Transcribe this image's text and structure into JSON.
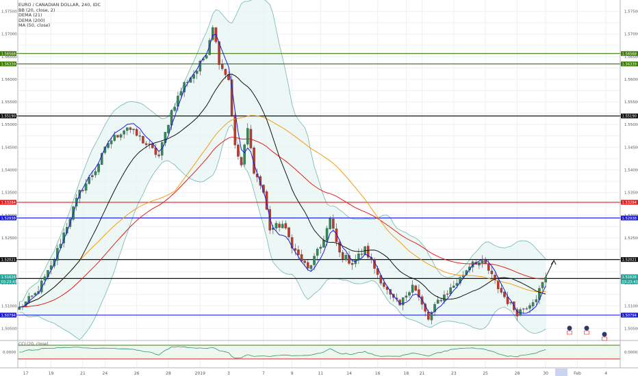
{
  "chart_data": {
    "type": "candlestick",
    "symbol": "EURO / CANADIAN DOLLAR, 240, IDC",
    "indicator_labels": [
      "BB (20, close, 2)",
      "DEMA (21)",
      "DEMA (200)",
      "MA (50, close)"
    ],
    "sub_indicator_label": "CCI (20, close)",
    "ylim": [
      1.5025,
      1.5775
    ],
    "y_ticks": [
      "1.57500",
      "1.57000",
      "1.56500",
      "1.56000",
      "1.55500",
      "1.55000",
      "1.54500",
      "1.54000",
      "1.53500",
      "1.53000",
      "1.52500",
      "1.52000",
      "1.51500",
      "1.51000",
      "1.50500"
    ],
    "cci_tick": "0.0000",
    "x_tick_labels": [
      {
        "label": "17",
        "i": 2
      },
      {
        "label": "19",
        "i": 10
      },
      {
        "label": "21",
        "i": 20
      },
      {
        "label": "24",
        "i": 27
      },
      {
        "label": "26",
        "i": 37
      },
      {
        "label": "28",
        "i": 47
      },
      {
        "label": "2019",
        "i": 57
      },
      {
        "label": "3",
        "i": 66
      },
      {
        "label": "7",
        "i": 77
      },
      {
        "label": "9",
        "i": 86
      },
      {
        "label": "11",
        "i": 95
      },
      {
        "label": "14",
        "i": 104
      },
      {
        "label": "16",
        "i": 113
      },
      {
        "label": "18",
        "i": 122
      },
      {
        "label": "21",
        "i": 127
      },
      {
        "label": "23",
        "i": 137
      },
      {
        "label": "25",
        "i": 147
      },
      {
        "label": "28",
        "i": 157
      },
      {
        "label": "30",
        "i": 166
      },
      {
        "label": "Feb",
        "i": 176
      },
      {
        "label": "4",
        "i": 185
      }
    ],
    "horizontal_levels": [
      {
        "value": 1.56568,
        "label": "1.56568",
        "color": "#3e7d0a"
      },
      {
        "value": 1.56339,
        "label": "1.56339",
        "color": "#3e7d0a"
      },
      {
        "value": 1.5519,
        "label": "1.55190",
        "color": "#111111"
      },
      {
        "value": 1.53284,
        "label": "1.53284",
        "color": "#e31b1b"
      },
      {
        "value": 1.52938,
        "label": "1.52938",
        "color": "#1a1adf"
      },
      {
        "value": 1.52021,
        "label": "1.52021",
        "color": "#111111"
      },
      {
        "value": 1.51602,
        "label": "1.51602",
        "color": "#111111"
      },
      {
        "value": 1.50794,
        "label": "1.50794",
        "color": "#1a1adf"
      }
    ],
    "last_price": {
      "value": 1.51626,
      "label": "1.51626",
      "countdown": "03:23:43",
      "color": "#26a69a"
    },
    "anchors": [
      {
        "i": 0,
        "v": 1.5095
      },
      {
        "i": 5,
        "v": 1.5125
      },
      {
        "i": 10,
        "v": 1.5185
      },
      {
        "i": 14,
        "v": 1.526
      },
      {
        "i": 19,
        "v": 1.535
      },
      {
        "i": 24,
        "v": 1.54
      },
      {
        "i": 28,
        "v": 1.546
      },
      {
        "i": 34,
        "v": 1.5495
      },
      {
        "i": 38,
        "v": 1.547
      },
      {
        "i": 44,
        "v": 1.543
      },
      {
        "i": 48,
        "v": 1.553
      },
      {
        "i": 52,
        "v": 1.559
      },
      {
        "i": 56,
        "v": 1.562
      },
      {
        "i": 59,
        "v": 1.566
      },
      {
        "i": 61,
        "v": 1.572
      },
      {
        "i": 63,
        "v": 1.564
      },
      {
        "i": 66,
        "v": 1.56
      },
      {
        "i": 68,
        "v": 1.545
      },
      {
        "i": 70,
        "v": 1.541
      },
      {
        "i": 72,
        "v": 1.549
      },
      {
        "i": 74,
        "v": 1.54
      },
      {
        "i": 77,
        "v": 1.535
      },
      {
        "i": 79,
        "v": 1.527
      },
      {
        "i": 83,
        "v": 1.528
      },
      {
        "i": 87,
        "v": 1.522
      },
      {
        "i": 91,
        "v": 1.518
      },
      {
        "i": 95,
        "v": 1.523
      },
      {
        "i": 98,
        "v": 1.529
      },
      {
        "i": 101,
        "v": 1.5215
      },
      {
        "i": 105,
        "v": 1.5195
      },
      {
        "i": 109,
        "v": 1.5225
      },
      {
        "i": 113,
        "v": 1.517
      },
      {
        "i": 117,
        "v": 1.512
      },
      {
        "i": 120,
        "v": 1.51
      },
      {
        "i": 124,
        "v": 1.515
      },
      {
        "i": 127,
        "v": 1.51
      },
      {
        "i": 129,
        "v": 1.507
      },
      {
        "i": 132,
        "v": 1.511
      },
      {
        "i": 135,
        "v": 1.513
      },
      {
        "i": 139,
        "v": 1.516
      },
      {
        "i": 143,
        "v": 1.52
      },
      {
        "i": 147,
        "v": 1.519
      },
      {
        "i": 151,
        "v": 1.514
      },
      {
        "i": 154,
        "v": 1.511
      },
      {
        "i": 157,
        "v": 1.5085
      },
      {
        "i": 160,
        "v": 1.51
      },
      {
        "i": 163,
        "v": 1.512
      },
      {
        "i": 166,
        "v": 1.5163
      }
    ]
  }
}
